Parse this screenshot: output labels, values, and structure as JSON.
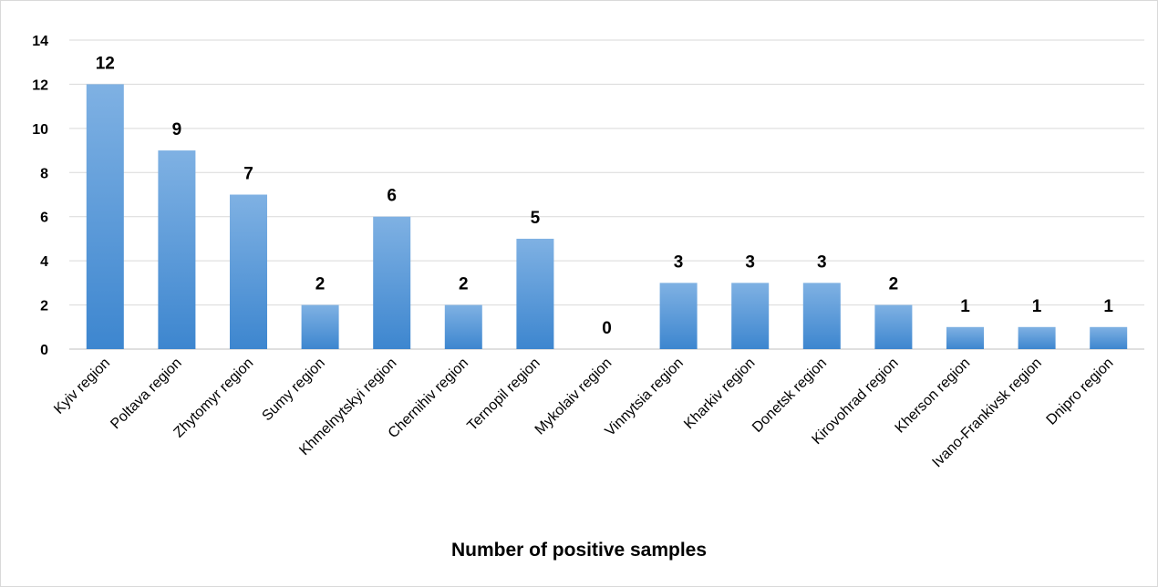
{
  "chart_data": {
    "type": "bar",
    "categories": [
      "Kyiv region",
      "Poltava region",
      "Zhytomyr region",
      "Sumy region",
      "Khmelnytskyi region",
      "Chernihiv region",
      "Ternopil region",
      "Mykolaiv region",
      "Vinnytsia region",
      "Kharkiv region",
      "Donetsk region",
      "Kirovohrad region",
      "Kherson region",
      "Ivano-Frankivsk region",
      "Dnipro region"
    ],
    "values": [
      12,
      9,
      7,
      2,
      6,
      2,
      5,
      0,
      3,
      3,
      3,
      2,
      1,
      1,
      1
    ],
    "title": "",
    "xlabel": "Number of positive samples",
    "ylabel": "",
    "ylim": [
      0,
      14
    ],
    "yticks": [
      0,
      2,
      4,
      6,
      8,
      10,
      12,
      14
    ],
    "grid": true,
    "legend": "none",
    "colors": {
      "bar_top": "#7fb1e3",
      "bar_bottom": "#3d86cf",
      "grid": "#d9d9d9",
      "text": "#000000"
    }
  }
}
